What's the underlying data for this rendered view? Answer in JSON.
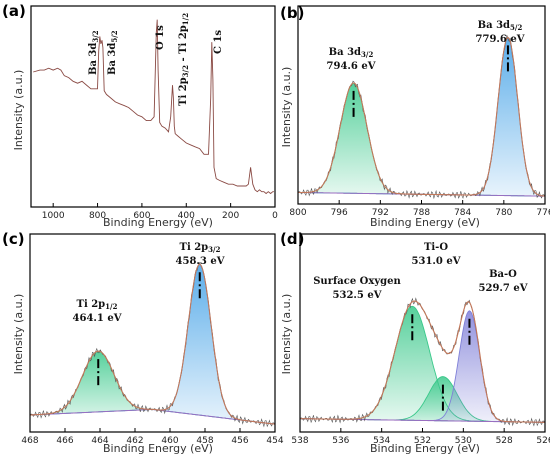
{
  "colors": {
    "raw": "#8a4a44",
    "fit": "#c4785a",
    "baseline": "#9b6ec0",
    "green": "#39c88a",
    "blue": "#3f9fe6",
    "purple": "#7f7fd8"
  },
  "chart_data": [
    {
      "id": "a",
      "panel_label": "(a)",
      "type": "line",
      "xlabel": "Binding Energy (eV)",
      "ylabel": "Intensity (a.u.)",
      "xlim": [
        1100,
        0
      ],
      "xticks": [
        "1000",
        "800",
        "600",
        "400",
        "200",
        "0"
      ],
      "xtick_values": [
        1000,
        800,
        600,
        400,
        200,
        0
      ],
      "series": [
        {
          "x": [
            1090,
            1060,
            1040,
            1020,
            1000,
            980,
            965,
            950,
            930,
            910,
            890,
            870,
            850,
            830,
            800,
            795,
            790,
            785,
            780,
            776,
            770,
            760,
            740,
            720,
            700,
            680,
            660,
            640,
            620,
            600,
            580,
            560,
            545,
            535,
            531,
            527,
            520,
            510,
            495,
            480,
            470,
            462,
            458,
            454,
            450,
            440,
            420,
            400,
            380,
            360,
            340,
            320,
            300,
            290,
            285,
            280,
            275,
            265,
            250,
            230,
            210,
            190,
            170,
            150,
            130,
            120,
            110,
            100,
            90,
            80,
            70,
            60,
            50,
            40,
            30,
            20,
            10,
            5
          ],
          "y": [
            0.69,
            0.7,
            0.7,
            0.71,
            0.7,
            0.71,
            0.7,
            0.67,
            0.66,
            0.64,
            0.63,
            0.64,
            0.62,
            0.6,
            0.6,
            0.8,
            0.88,
            0.84,
            0.86,
            0.82,
            0.59,
            0.57,
            0.55,
            0.53,
            0.52,
            0.51,
            0.5,
            0.48,
            0.46,
            0.45,
            0.43,
            0.43,
            0.45,
            0.9,
            0.97,
            0.7,
            0.42,
            0.4,
            0.39,
            0.37,
            0.45,
            0.62,
            0.55,
            0.4,
            0.36,
            0.35,
            0.33,
            0.31,
            0.3,
            0.29,
            0.28,
            0.25,
            0.25,
            0.55,
            0.85,
            0.65,
            0.18,
            0.12,
            0.11,
            0.1,
            0.09,
            0.09,
            0.08,
            0.08,
            0.08,
            0.09,
            0.18,
            0.09,
            0.06,
            0.05,
            0.06,
            0.05,
            0.05,
            0.04,
            0.05,
            0.04,
            0.05,
            0.05
          ]
        }
      ],
      "annotations": [
        {
          "x": 795,
          "parts": [
            "Ba 3d",
            "3/2"
          ]
        },
        {
          "x": 770,
          "parts": [
            "Ba 3d",
            "5/2"
          ]
        },
        {
          "x": 531,
          "parts": [
            "O 1s"
          ]
        },
        {
          "x": 458,
          "parts": [
            "Ti 2p",
            "3/2",
            " - Ti 2p",
            "1/2"
          ]
        },
        {
          "x": 285,
          "parts": [
            "C 1s"
          ]
        }
      ]
    },
    {
      "id": "b",
      "panel_label": "(b)",
      "type": "line",
      "xlabel": "Binding Energy (eV)",
      "ylabel": "Intensity (a.u.)",
      "xlim": [
        800,
        776
      ],
      "xticks": [
        "800",
        "796",
        "792",
        "788",
        "784",
        "780",
        "776"
      ],
      "xtick_values": [
        800,
        796,
        792,
        788,
        784,
        780,
        776
      ],
      "baseline": {
        "x": [
          800,
          776
        ],
        "y": [
          0.03,
          0.01
        ]
      },
      "peaks": [
        {
          "center": 794.6,
          "amp": 0.6,
          "sigma": 1.3,
          "color_key": "green"
        },
        {
          "center": 779.6,
          "amp": 0.86,
          "sigma": 0.95,
          "color_key": "blue"
        }
      ],
      "annotations": [
        {
          "x": 794.6,
          "lines": [
            [
              "Ba 3d",
              "3/2"
            ],
            [
              "794.6 eV"
            ]
          ]
        },
        {
          "x": 779.6,
          "lines": [
            [
              "Ba 3d",
              "5/2"
            ],
            [
              "779.6 eV"
            ]
          ]
        }
      ]
    },
    {
      "id": "c",
      "panel_label": "(c)",
      "type": "line",
      "xlabel": "Binding Energy (eV)",
      "ylabel": "Intensity (a.u.)",
      "xlim": [
        468,
        454
      ],
      "xticks": [
        "468",
        "466",
        "464",
        "462",
        "460",
        "458",
        "456",
        "454"
      ],
      "xtick_values": [
        468,
        466,
        464,
        462,
        460,
        458,
        456,
        454
      ],
      "baseline": {
        "x": [
          468,
          461,
          454
        ],
        "y": [
          0.06,
          0.09,
          0.01
        ]
      },
      "peaks": [
        {
          "center": 464.1,
          "amp": 0.33,
          "sigma": 0.9,
          "color_key": "green"
        },
        {
          "center": 458.3,
          "amp": 0.82,
          "sigma": 0.65,
          "color_key": "blue"
        }
      ],
      "annotations": [
        {
          "x": 464.1,
          "lines": [
            [
              "Ti 2p",
              "1/2"
            ],
            [
              "464.1 eV"
            ]
          ]
        },
        {
          "x": 458.3,
          "lines": [
            [
              "Ti 2p",
              "3/2"
            ],
            [
              "458.3 eV"
            ]
          ]
        }
      ]
    },
    {
      "id": "d",
      "panel_label": "(d)",
      "type": "line",
      "xlabel": "Binding Energy (eV)",
      "ylabel": "Intensity (a.u.)",
      "xlim": [
        538,
        526
      ],
      "xticks": [
        "538",
        "536",
        "534",
        "532",
        "530",
        "528",
        "526"
      ],
      "xtick_values": [
        538,
        536,
        534,
        532,
        530,
        528,
        526
      ],
      "baseline": {
        "x": [
          538,
          526
        ],
        "y": [
          0.04,
          0.02
        ]
      },
      "peaks": [
        {
          "center": 532.5,
          "amp": 0.62,
          "sigma": 0.85,
          "color_key": "green"
        },
        {
          "center": 531.0,
          "amp": 0.24,
          "sigma": 0.7,
          "color_key": "green"
        },
        {
          "center": 529.7,
          "amp": 0.6,
          "sigma": 0.5,
          "color_key": "purple"
        }
      ],
      "annotations": [
        {
          "x": 532.5,
          "lines": [
            [
              "Surface Oxygen"
            ],
            [
              "532.5 eV"
            ]
          ]
        },
        {
          "x": 531.0,
          "lines": [
            [
              "Ti-O"
            ],
            [
              "531.0 eV"
            ]
          ]
        },
        {
          "x": 529.7,
          "lines": [
            [
              "Ba-O"
            ],
            [
              "529.7 eV"
            ]
          ]
        }
      ]
    }
  ]
}
